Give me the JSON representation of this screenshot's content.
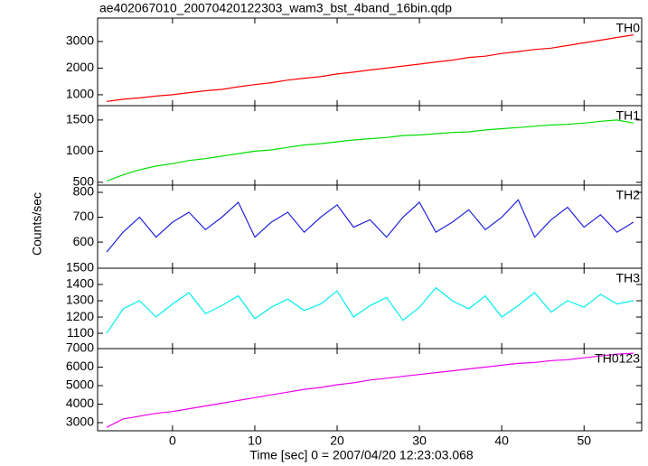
{
  "title": "ae402067010_20070420122303_wam3_bst_4band_16bin.qdp",
  "xlabel": "Time [sec] 0 = 2007/04/20 12:23:03.068",
  "ylabel": "Counts/sec",
  "xlim": [
    -9.1,
    57
  ],
  "xticks": [
    0,
    10,
    20,
    30,
    40,
    50
  ],
  "x": [
    -8,
    -6,
    -4,
    -2,
    0,
    2,
    4,
    6,
    8,
    10,
    12,
    14,
    16,
    18,
    20,
    22,
    24,
    26,
    28,
    30,
    32,
    34,
    36,
    38,
    40,
    42,
    44,
    46,
    48,
    50,
    52,
    54,
    56
  ],
  "chart_data": [
    {
      "type": "line",
      "label": "TH0",
      "color": "#ff0000",
      "ylim": [
        590,
        3880
      ],
      "yticks": [
        1000,
        2000,
        3000
      ],
      "values": [
        750,
        830,
        880,
        950,
        1000,
        1080,
        1150,
        1200,
        1300,
        1380,
        1450,
        1550,
        1620,
        1680,
        1780,
        1850,
        1930,
        2000,
        2080,
        2150,
        2230,
        2300,
        2400,
        2450,
        2550,
        2620,
        2700,
        2750,
        2850,
        2950,
        3050,
        3150,
        3250
      ]
    },
    {
      "type": "line",
      "label": "TH1",
      "color": "#00dd00",
      "ylim": [
        455,
        1730
      ],
      "yticks": [
        500,
        1000,
        1500
      ],
      "values": [
        520,
        620,
        700,
        760,
        800,
        850,
        880,
        920,
        960,
        1000,
        1020,
        1060,
        1100,
        1120,
        1150,
        1180,
        1200,
        1220,
        1250,
        1260,
        1280,
        1300,
        1310,
        1340,
        1360,
        1380,
        1400,
        1420,
        1430,
        1450,
        1480,
        1500,
        1450
      ]
    },
    {
      "type": "line",
      "label": "TH2",
      "color": "#2222dd",
      "ylim": [
        495,
        829
      ],
      "yticks": [
        600,
        700,
        800
      ],
      "values": [
        560,
        640,
        700,
        620,
        680,
        720,
        650,
        700,
        760,
        620,
        680,
        720,
        640,
        700,
        750,
        660,
        690,
        620,
        700,
        760,
        640,
        680,
        730,
        650,
        700,
        770,
        620,
        690,
        740,
        660,
        710,
        640,
        680
      ]
    },
    {
      "type": "line",
      "label": "TH3",
      "color": "#00eeee",
      "ylim": [
        1006,
        1500
      ],
      "yticks": [
        1100,
        1200,
        1300,
        1400,
        1500
      ],
      "values": [
        1100,
        1250,
        1300,
        1200,
        1280,
        1350,
        1220,
        1270,
        1330,
        1190,
        1260,
        1310,
        1240,
        1280,
        1360,
        1200,
        1270,
        1320,
        1180,
        1260,
        1380,
        1300,
        1250,
        1330,
        1200,
        1270,
        1350,
        1230,
        1300,
        1260,
        1340,
        1280,
        1300
      ]
    },
    {
      "type": "line",
      "label": "TH0123",
      "color": "#ee00ee",
      "ylim": [
        2560,
        7000
      ],
      "yticks": [
        3000,
        4000,
        5000,
        6000,
        7000
      ],
      "values": [
        2750,
        3200,
        3350,
        3500,
        3600,
        3750,
        3900,
        4050,
        4200,
        4350,
        4500,
        4650,
        4800,
        4900,
        5050,
        5150,
        5300,
        5400,
        5500,
        5600,
        5700,
        5800,
        5900,
        6000,
        6100,
        6200,
        6250,
        6350,
        6400,
        6500,
        6600,
        6700,
        6750
      ]
    }
  ]
}
